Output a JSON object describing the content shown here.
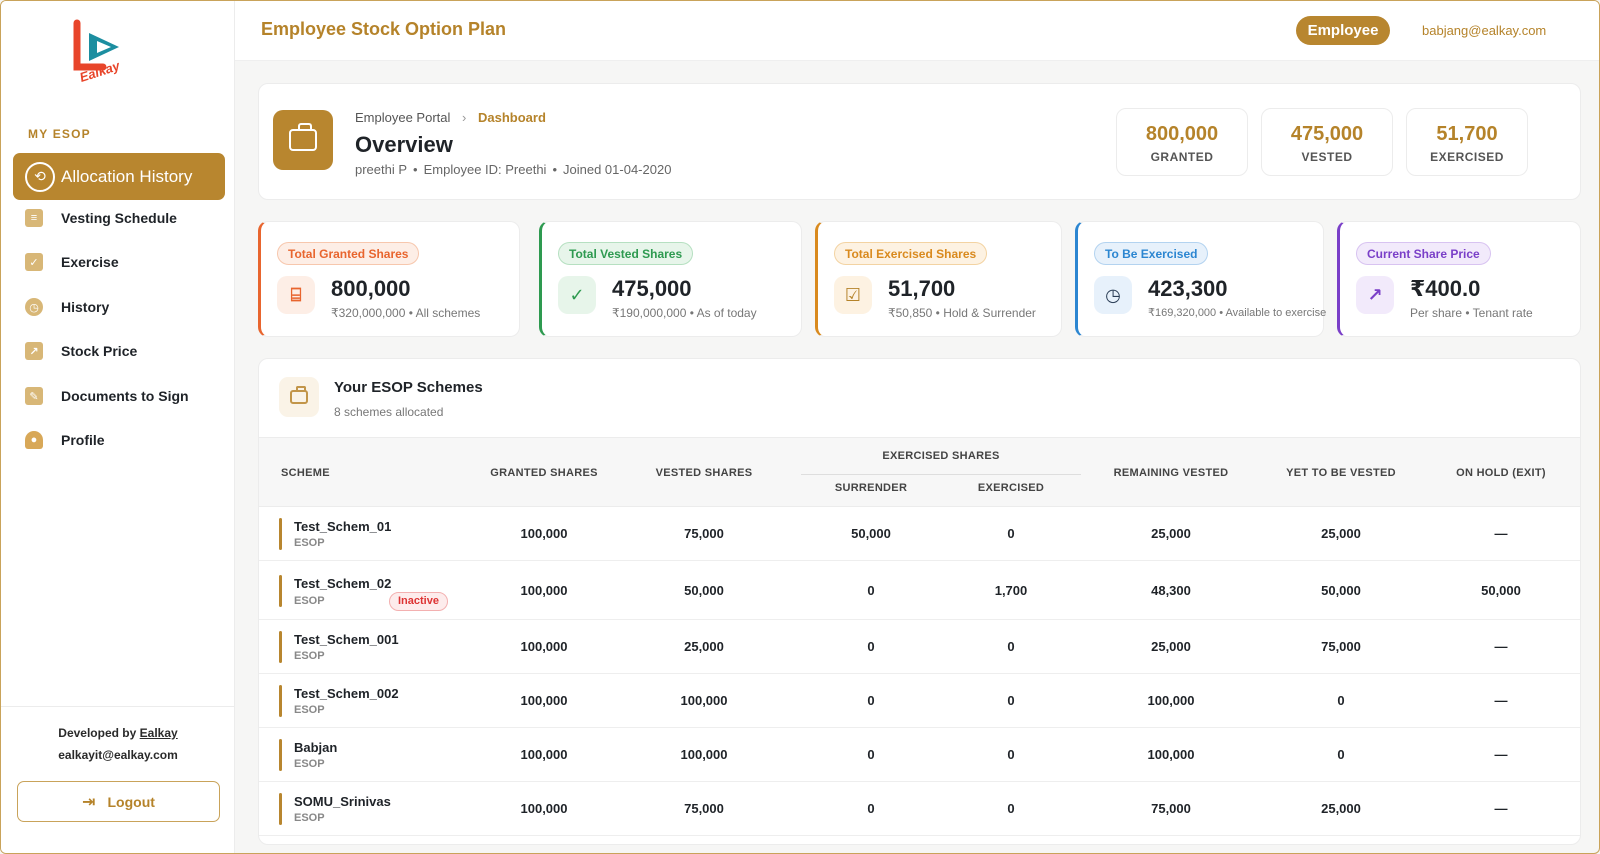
{
  "app": {
    "title": "Employee Stock Option Plan",
    "role": "Employee",
    "user_email": "babjang@ealkay.com"
  },
  "logo": {
    "text": "Ealkay"
  },
  "sidebar": {
    "section": "MY ESOP",
    "items": [
      {
        "label": "Allocation History",
        "icon": "clock-history-icon",
        "active": true
      },
      {
        "label": "Vesting Schedule",
        "icon": "document-icon"
      },
      {
        "label": "Exercise",
        "icon": "checkbox-icon"
      },
      {
        "label": "History",
        "icon": "clock-icon"
      },
      {
        "label": "Stock Price",
        "icon": "chart-icon"
      },
      {
        "label": "Documents to Sign",
        "icon": "sign-document-icon"
      },
      {
        "label": "Profile",
        "icon": "user-icon"
      }
    ],
    "developed_by_prefix": "Developed by",
    "developed_by": "Ealkay",
    "developer_email": "ealkayit@ealkay.com",
    "logout_label": "Logout"
  },
  "overview": {
    "breadcrumb": [
      "Employee Portal",
      "Dashboard"
    ],
    "title": "Overview",
    "employee_name": "preethi P",
    "employee_id": "Employee ID: Preethi",
    "joined": "Joined 01-04-2020",
    "stats": [
      {
        "value": "800,000",
        "label": "GRANTED"
      },
      {
        "value": "475,000",
        "label": "VESTED"
      },
      {
        "value": "51,700",
        "label": "EXERCISED"
      }
    ]
  },
  "kpis": [
    {
      "label": "Total Granted Shares",
      "value": "800,000",
      "sub": "₹320,000,000 • All schemes",
      "icon": "gift-icon",
      "color": "#e8652e"
    },
    {
      "label": "Total Vested Shares",
      "value": "475,000",
      "sub": "₹190,000,000 • As of today",
      "icon": "check-icon",
      "color": "#2e9a50"
    },
    {
      "label": "Total Exercised Shares",
      "value": "51,700",
      "sub": "₹50,850 • Hold & Surrender",
      "icon": "edit-check-icon",
      "color": "#d98a1e"
    },
    {
      "label": "To Be Exercised",
      "value": "423,300",
      "sub": "₹169,320,000 • Available to exercise",
      "icon": "clock-icon",
      "color": "#2c86d1"
    },
    {
      "label": "Current Share Price",
      "value": "₹400.0",
      "sub": "Per share • Tenant rate",
      "icon": "trend-up-icon",
      "color": "#7a3fc8"
    }
  ],
  "schemes": {
    "title": "Your ESOP Schemes",
    "subtitle": "8 schemes allocated",
    "headers": {
      "scheme": "SCHEME",
      "granted": "GRANTED SHARES",
      "vested": "VESTED SHARES",
      "exercised_group": "EXERCISED SHARES",
      "surrender": "SURRENDER",
      "exercised": "EXERCISED",
      "remaining": "REMAINING VESTED",
      "yet": "YET TO BE VESTED",
      "onhold": "ON HOLD (EXIT)"
    },
    "rows": [
      {
        "name": "Test_Schem_01",
        "type": "ESOP",
        "badge": "",
        "granted": "100,000",
        "vested": "75,000",
        "surrender": "50,000",
        "exercised": "0",
        "remaining": "25,000",
        "yet": "25,000",
        "onhold": "—"
      },
      {
        "name": "Test_Schem_02",
        "type": "ESOP",
        "badge": "Inactive",
        "granted": "100,000",
        "vested": "50,000",
        "surrender": "0",
        "exercised": "1,700",
        "remaining": "48,300",
        "yet": "50,000",
        "onhold": "50,000"
      },
      {
        "name": "Test_Schem_001",
        "type": "ESOP",
        "badge": "",
        "granted": "100,000",
        "vested": "25,000",
        "surrender": "0",
        "exercised": "0",
        "remaining": "25,000",
        "yet": "75,000",
        "onhold": "—"
      },
      {
        "name": "Test_Schem_002",
        "type": "ESOP",
        "badge": "",
        "granted": "100,000",
        "vested": "100,000",
        "surrender": "0",
        "exercised": "0",
        "remaining": "100,000",
        "yet": "0",
        "onhold": "—"
      },
      {
        "name": "Babjan",
        "type": "ESOP",
        "badge": "",
        "granted": "100,000",
        "vested": "100,000",
        "surrender": "0",
        "exercised": "0",
        "remaining": "100,000",
        "yet": "0",
        "onhold": "—"
      },
      {
        "name": "SOMU_Srinivas",
        "type": "ESOP",
        "badge": "",
        "granted": "100,000",
        "vested": "75,000",
        "surrender": "0",
        "exercised": "0",
        "remaining": "75,000",
        "yet": "25,000",
        "onhold": "—"
      }
    ]
  }
}
